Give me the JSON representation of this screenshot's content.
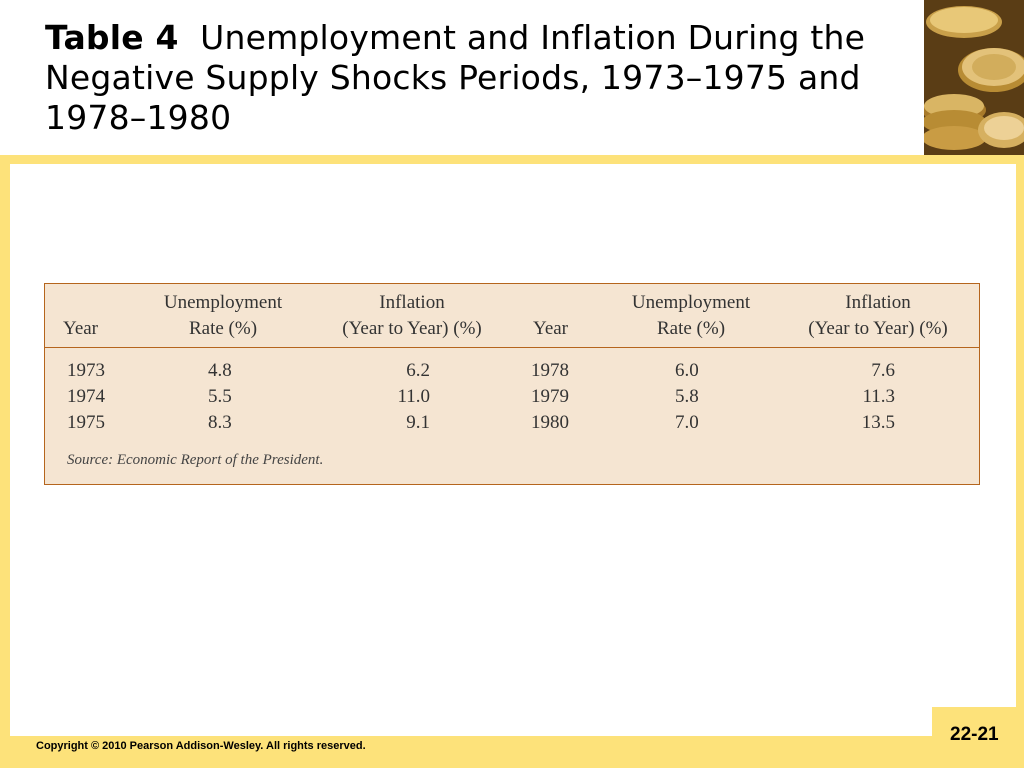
{
  "title": {
    "label": "Table 4",
    "text": "Unemployment and Inflation During the Negative Supply Shocks Periods, 1973–1975 and 1978–1980"
  },
  "table": {
    "headers": {
      "year1": "Year",
      "unemp1_l1": "Unemployment",
      "unemp1_l2": "Rate (%)",
      "infl1_l1": "Inflation",
      "infl1_l2": "(Year to Year) (%)",
      "year2": "Year",
      "unemp2_l1": "Unemployment",
      "unemp2_l2": "Rate (%)",
      "infl2_l1": "Inflation",
      "infl2_l2": "(Year to Year) (%)"
    },
    "rows": [
      [
        "1973",
        "4.8",
        "6.2",
        "1978",
        "6.0",
        "7.6"
      ],
      [
        "1974",
        "5.5",
        "11.0",
        "1979",
        "5.8",
        "11.3"
      ],
      [
        "1975",
        "8.3",
        "9.1",
        "1980",
        "7.0",
        "13.5"
      ]
    ],
    "source": "Source: Economic Report of the President."
  },
  "footer": {
    "copyright": "Copyright © 2010 Pearson Addison-Wesley. All rights reserved.",
    "page": "22-21"
  },
  "colors": {
    "frame": "#fde27a",
    "table_bg": "#f5e5d2",
    "table_border": "#b5651d"
  },
  "icons": {
    "corner_image": "gold-coins-stack"
  }
}
